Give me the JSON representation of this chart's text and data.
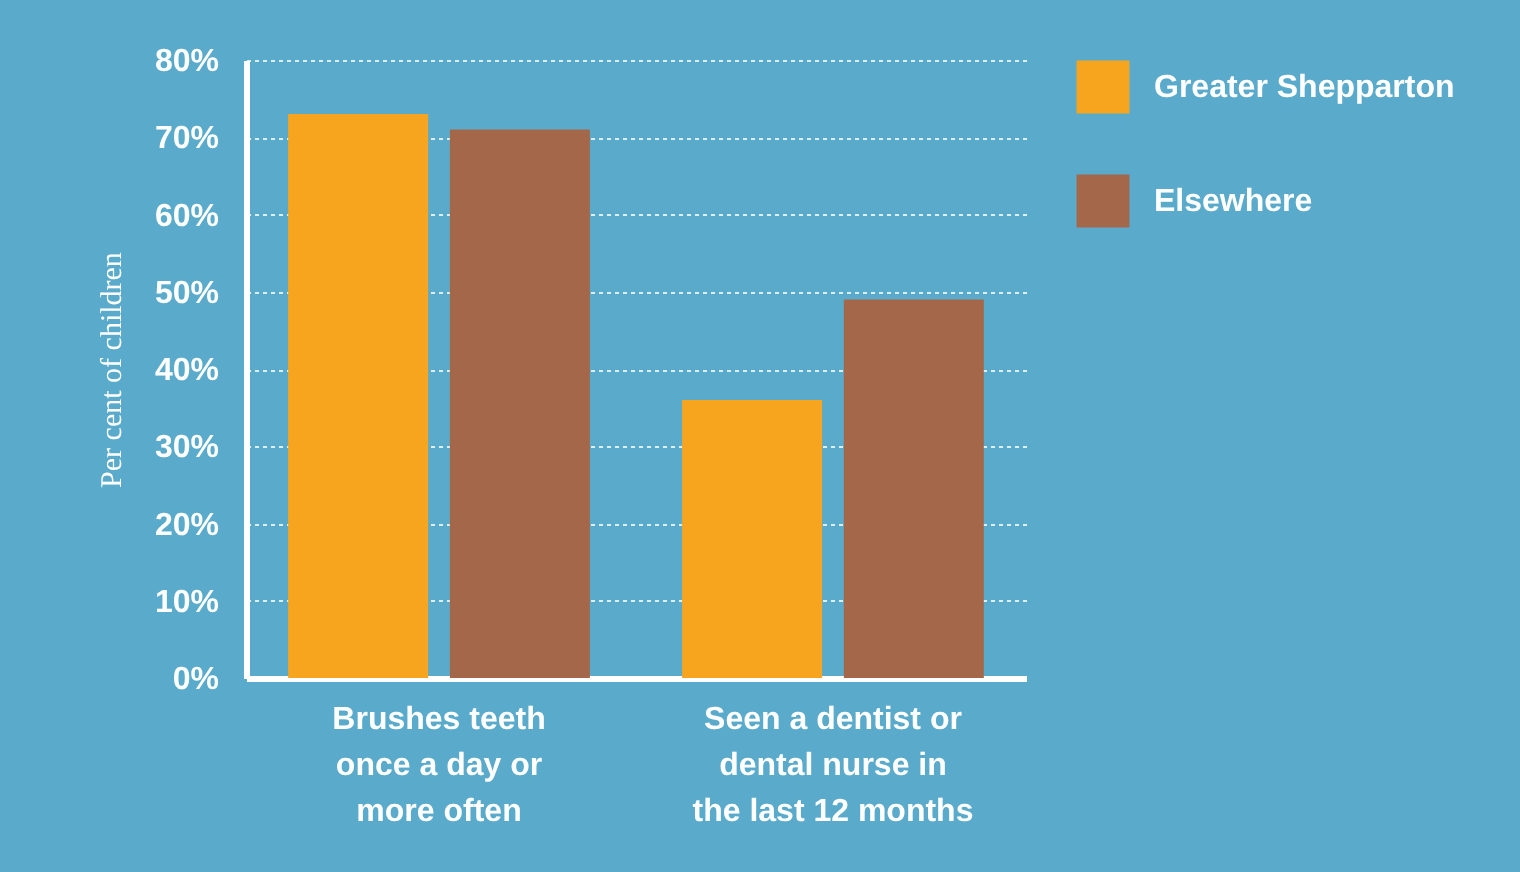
{
  "chart_data": {
    "type": "bar",
    "ylabel": "Per cent of children",
    "categories": [
      "Brushes teeth\nonce a day or\nmore often",
      "Seen a dentist or\ndental nurse in\nthe last 12 months"
    ],
    "series": [
      {
        "name": "Greater Shepparton",
        "color": "#f7a51e",
        "values": [
          73,
          36
        ]
      },
      {
        "name": "Elsewhere",
        "color": "#a5674a",
        "values": [
          71,
          49
        ]
      }
    ],
    "ylim": [
      0,
      80
    ],
    "yticks": [
      {
        "value": 0,
        "label": "0%"
      },
      {
        "value": 10,
        "label": "10%"
      },
      {
        "value": 20,
        "label": "20%"
      },
      {
        "value": 30,
        "label": "30%"
      },
      {
        "value": 40,
        "label": "40%"
      },
      {
        "value": 50,
        "label": "50%"
      },
      {
        "value": 60,
        "label": "60%"
      },
      {
        "value": 70,
        "label": "70%"
      },
      {
        "value": 80,
        "label": "80%"
      }
    ],
    "grid": "y",
    "legend": "top right"
  }
}
